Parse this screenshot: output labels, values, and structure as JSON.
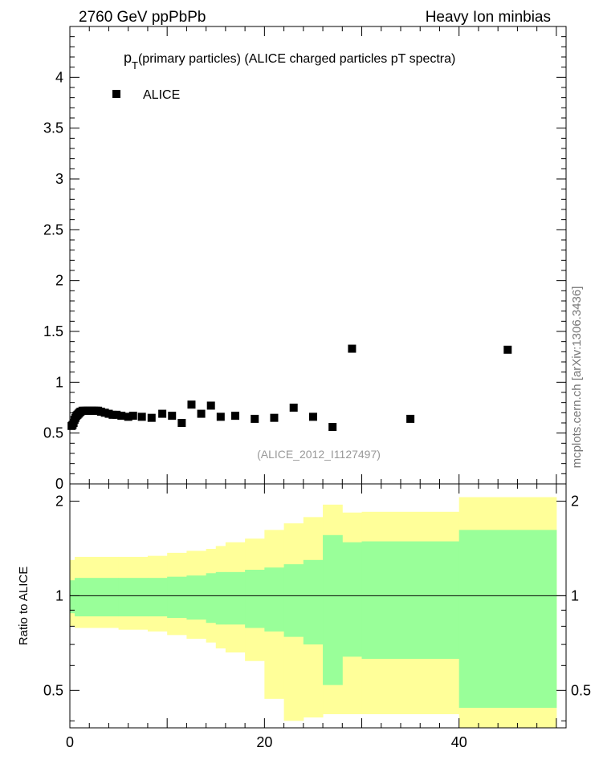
{
  "header": {
    "left": "2760 GeV ppPbPb",
    "right": "Heavy Ion minbias"
  },
  "side_label": "mcplots.cern.ch [arXiv:1306.3436]",
  "chart_data": {
    "top": {
      "type": "scatter",
      "title_main": "p",
      "title_sub": "T",
      "title_rest": "(primary particles) (ALICE charged particles pT spectra)",
      "reference": "(ALICE_2012_I1127497)",
      "legend": "ALICE",
      "legend_position": "top-left",
      "ylim": [
        0,
        4.5
      ],
      "xlim": [
        0,
        51
      ],
      "yticks": [
        {
          "v": 0,
          "label": "0"
        },
        {
          "v": 0.5,
          "label": "0.5"
        },
        {
          "v": 1,
          "label": "1"
        },
        {
          "v": 1.5,
          "label": "1.5"
        },
        {
          "v": 2,
          "label": "2"
        },
        {
          "v": 2.5,
          "label": "2.5"
        },
        {
          "v": 3,
          "label": "3"
        },
        {
          "v": 3.5,
          "label": "3.5"
        },
        {
          "v": 4,
          "label": "4"
        }
      ],
      "series": [
        {
          "name": "ALICE",
          "color": "#000000",
          "points": [
            [
              0.18,
              0.57
            ],
            [
              0.28,
              0.58
            ],
            [
              0.38,
              0.6
            ],
            [
              0.48,
              0.63
            ],
            [
              0.58,
              0.65
            ],
            [
              0.68,
              0.67
            ],
            [
              0.78,
              0.68
            ],
            [
              0.88,
              0.69
            ],
            [
              0.98,
              0.7
            ],
            [
              1.1,
              0.71
            ],
            [
              1.3,
              0.72
            ],
            [
              1.5,
              0.72
            ],
            [
              1.7,
              0.72
            ],
            [
              1.9,
              0.72
            ],
            [
              2.1,
              0.72
            ],
            [
              2.3,
              0.72
            ],
            [
              2.5,
              0.72
            ],
            [
              2.7,
              0.72
            ],
            [
              2.9,
              0.72
            ],
            [
              3.2,
              0.71
            ],
            [
              3.6,
              0.7
            ],
            [
              4.0,
              0.69
            ],
            [
              4.4,
              0.68
            ],
            [
              4.8,
              0.68
            ],
            [
              5.3,
              0.67
            ],
            [
              6.0,
              0.66
            ],
            [
              6.5,
              0.67
            ],
            [
              7.4,
              0.66
            ],
            [
              8.4,
              0.65
            ],
            [
              9.5,
              0.69
            ],
            [
              10.5,
              0.67
            ],
            [
              11.5,
              0.6
            ],
            [
              12.5,
              0.78
            ],
            [
              13.5,
              0.69
            ],
            [
              14.5,
              0.77
            ],
            [
              15.5,
              0.66
            ],
            [
              17.0,
              0.67
            ],
            [
              19.0,
              0.64
            ],
            [
              21.0,
              0.65
            ],
            [
              23.0,
              0.75
            ],
            [
              25.0,
              0.66
            ],
            [
              27.0,
              0.56
            ],
            [
              29.0,
              1.33
            ],
            [
              35.0,
              0.64
            ],
            [
              45.0,
              1.32
            ]
          ]
        }
      ]
    },
    "bottom": {
      "type": "area",
      "ylabel": "Ratio to ALICE",
      "ylim": [
        0.38,
        2.27
      ],
      "xlim": [
        0,
        51
      ],
      "xticks": [
        {
          "v": 0,
          "label": "0"
        },
        {
          "v": 20,
          "label": "20"
        },
        {
          "v": 40,
          "label": "40"
        }
      ],
      "yticks": [
        {
          "v": 0.5,
          "label": "0.5"
        },
        {
          "v": 1,
          "label": "1"
        },
        {
          "v": 2,
          "label": "2"
        }
      ],
      "reference_line": 1,
      "bands": [
        {
          "name": "inner",
          "color": "#99ff99"
        },
        {
          "name": "outer",
          "color": "#ffff99"
        }
      ],
      "bins": [
        {
          "x0": 0,
          "x1": 0.5,
          "in_lo": 0.88,
          "in_hi": 1.12,
          "out_lo": 0.8,
          "out_hi": 1.3
        },
        {
          "x0": 0.5,
          "x1": 1,
          "in_lo": 0.86,
          "in_hi": 1.14,
          "out_lo": 0.79,
          "out_hi": 1.33
        },
        {
          "x0": 1,
          "x1": 5,
          "in_lo": 0.86,
          "in_hi": 1.14,
          "out_lo": 0.79,
          "out_hi": 1.33
        },
        {
          "x0": 5,
          "x1": 8,
          "in_lo": 0.86,
          "in_hi": 1.14,
          "out_lo": 0.78,
          "out_hi": 1.33
        },
        {
          "x0": 8,
          "x1": 10,
          "in_lo": 0.86,
          "in_hi": 1.14,
          "out_lo": 0.77,
          "out_hi": 1.34
        },
        {
          "x0": 10,
          "x1": 12,
          "in_lo": 0.85,
          "in_hi": 1.15,
          "out_lo": 0.75,
          "out_hi": 1.37
        },
        {
          "x0": 12,
          "x1": 14,
          "in_lo": 0.84,
          "in_hi": 1.16,
          "out_lo": 0.73,
          "out_hi": 1.39
        },
        {
          "x0": 14,
          "x1": 15,
          "in_lo": 0.82,
          "in_hi": 1.18,
          "out_lo": 0.71,
          "out_hi": 1.41
        },
        {
          "x0": 15,
          "x1": 16,
          "in_lo": 0.81,
          "in_hi": 1.19,
          "out_lo": 0.68,
          "out_hi": 1.44
        },
        {
          "x0": 16,
          "x1": 18,
          "in_lo": 0.81,
          "in_hi": 1.19,
          "out_lo": 0.66,
          "out_hi": 1.48
        },
        {
          "x0": 18,
          "x1": 20,
          "in_lo": 0.79,
          "in_hi": 1.21,
          "out_lo": 0.62,
          "out_hi": 1.52
        },
        {
          "x0": 20,
          "x1": 22,
          "in_lo": 0.77,
          "in_hi": 1.23,
          "out_lo": 0.47,
          "out_hi": 1.62
        },
        {
          "x0": 22,
          "x1": 24,
          "in_lo": 0.74,
          "in_hi": 1.26,
          "out_lo": 0.4,
          "out_hi": 1.7
        },
        {
          "x0": 24,
          "x1": 26,
          "in_lo": 0.7,
          "in_hi": 1.3,
          "out_lo": 0.41,
          "out_hi": 1.78
        },
        {
          "x0": 26,
          "x1": 28,
          "in_lo": 0.52,
          "in_hi": 1.56,
          "out_lo": 0.42,
          "out_hi": 1.95
        },
        {
          "x0": 28,
          "x1": 30,
          "in_lo": 0.64,
          "in_hi": 1.48,
          "out_lo": 0.42,
          "out_hi": 1.84
        },
        {
          "x0": 30,
          "x1": 40,
          "in_lo": 0.63,
          "in_hi": 1.49,
          "out_lo": 0.42,
          "out_hi": 1.85
        },
        {
          "x0": 40,
          "x1": 50,
          "in_lo": 0.44,
          "in_hi": 1.62,
          "out_lo": 0.38,
          "out_hi": 2.06
        }
      ]
    }
  }
}
